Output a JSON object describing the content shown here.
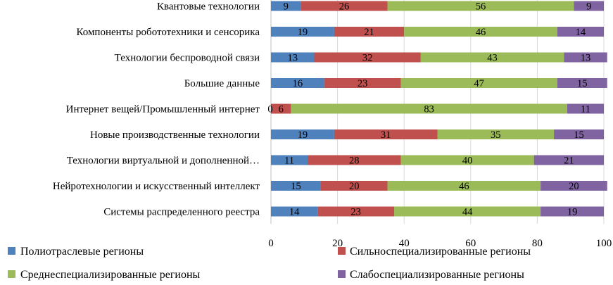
{
  "chart_data": {
    "type": "bar",
    "orientation": "horizontal",
    "stacked": true,
    "categories": [
      "Квантовые технологии",
      "Компоненты робототехники и сенсорика",
      "Технологии беспроводной связи",
      "Большие данные",
      "Интернет вещей/Промышленный интернет",
      "Новые производственные технологии",
      "Технологии виртуальной и дополненной…",
      "Нейротехнологии и искусственный интеллект",
      "Системы распределенного реестра"
    ],
    "series": [
      {
        "name": "Полиотраслевые регионы",
        "color": "#4f81bd",
        "values": [
          9,
          19,
          13,
          16,
          0,
          19,
          11,
          15,
          14
        ]
      },
      {
        "name": "Сильноспециализированные регионы",
        "color": "#c0504d",
        "values": [
          26,
          21,
          32,
          23,
          6,
          31,
          28,
          20,
          23
        ]
      },
      {
        "name": "Среднеспециализированные регионы",
        "color": "#9bbb59",
        "values": [
          56,
          46,
          43,
          47,
          83,
          35,
          40,
          46,
          44
        ]
      },
      {
        "name": "Слабоспециализированные регионы",
        "color": "#8064a2",
        "values": [
          9,
          14,
          13,
          15,
          11,
          15,
          21,
          20,
          19
        ]
      }
    ],
    "xlim": [
      0,
      100
    ],
    "xticks": [
      "0",
      "20",
      "40",
      "60",
      "80",
      "100"
    ],
    "grid": true,
    "legend_position": "bottom"
  }
}
